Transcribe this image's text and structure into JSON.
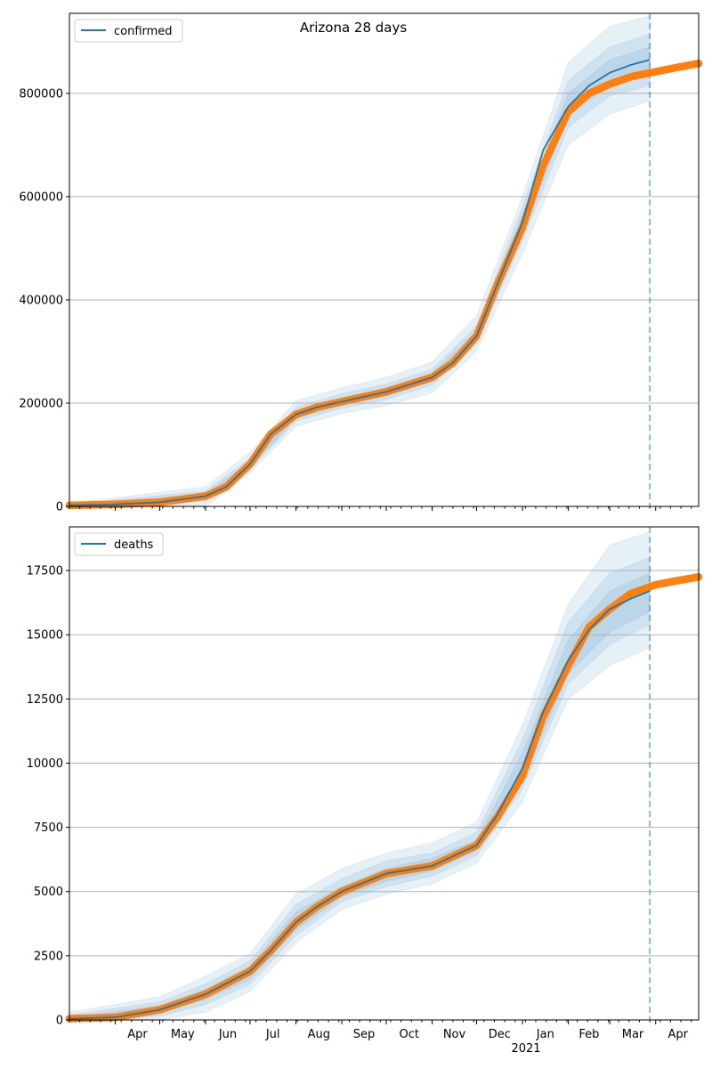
{
  "figure": {
    "title": "Arizona 28 days"
  },
  "colors": {
    "model": "#1f77b4",
    "observed": "#ff7f0e",
    "grid": "#b0b0b0",
    "band": "#1f77b4"
  },
  "chart_data": [
    {
      "type": "line",
      "name": "confirmed-panel",
      "legend": [
        "confirmed"
      ],
      "legend_position": "top-left",
      "grid": "horizontal",
      "xlim": [
        "2020-03-01",
        "2021-04-30"
      ],
      "ylim": [
        0,
        955000
      ],
      "yticks": [
        0,
        200000,
        400000,
        600000,
        800000
      ],
      "ytick_labels": [
        "0",
        "200000",
        "400000",
        "600000",
        "800000"
      ],
      "forecast_start": "2021-03-28",
      "series": [
        {
          "name": "confirmed",
          "role": "model",
          "x": [
            "2020-03-01",
            "2020-04-01",
            "2020-05-01",
            "2020-06-01",
            "2020-06-15",
            "2020-07-01",
            "2020-07-15",
            "2020-08-01",
            "2020-08-15",
            "2020-09-01",
            "2020-10-01",
            "2020-11-01",
            "2020-11-15",
            "2020-12-01",
            "2020-12-15",
            "2021-01-01",
            "2021-01-15",
            "2021-02-01",
            "2021-02-15",
            "2021-03-01",
            "2021-03-15",
            "2021-03-28"
          ],
          "y": [
            2000,
            4000,
            8000,
            20000,
            38000,
            82000,
            140000,
            178000,
            192000,
            203000,
            222000,
            250000,
            278000,
            330000,
            430000,
            550000,
            690000,
            775000,
            815000,
            840000,
            855000,
            865000
          ]
        },
        {
          "name": "observed",
          "role": "observed",
          "x": [
            "2020-03-01",
            "2020-04-01",
            "2020-05-01",
            "2020-06-01",
            "2020-06-15",
            "2020-07-01",
            "2020-07-15",
            "2020-08-01",
            "2020-08-15",
            "2020-09-01",
            "2020-10-01",
            "2020-11-01",
            "2020-11-15",
            "2020-12-01",
            "2020-12-15",
            "2021-01-01",
            "2021-01-15",
            "2021-02-01",
            "2021-02-15",
            "2021-03-01",
            "2021-03-15",
            "2021-04-01",
            "2021-04-15",
            "2021-04-30"
          ],
          "y": [
            2000,
            4000,
            8000,
            20000,
            38000,
            82000,
            140000,
            178000,
            192000,
            203000,
            222000,
            250000,
            278000,
            330000,
            430000,
            540000,
            660000,
            765000,
            800000,
            818000,
            832000,
            842000,
            850000,
            858000
          ]
        }
      ],
      "bands": [
        {
          "x": [
            "2020-03-01",
            "2020-06-01",
            "2020-07-01",
            "2020-08-01",
            "2020-09-01",
            "2020-10-01",
            "2020-11-01",
            "2020-12-01",
            "2021-01-01",
            "2021-02-01",
            "2021-03-01",
            "2021-03-28"
          ],
          "lower": [
            0,
            0,
            65000,
            155000,
            180000,
            195000,
            220000,
            300000,
            490000,
            700000,
            760000,
            785000
          ],
          "upper": [
            6000,
            38000,
            105000,
            205000,
            230000,
            250000,
            280000,
            370000,
            600000,
            860000,
            930000,
            950000
          ]
        },
        {
          "x": [
            "2020-03-01",
            "2020-06-01",
            "2020-07-01",
            "2020-08-01",
            "2020-09-01",
            "2020-10-01",
            "2020-11-01",
            "2020-12-01",
            "2021-01-01",
            "2021-02-01",
            "2021-03-01",
            "2021-03-28"
          ],
          "lower": [
            1000,
            10000,
            72000,
            165000,
            190000,
            207000,
            235000,
            315000,
            515000,
            735000,
            795000,
            815000
          ],
          "upper": [
            4000,
            30000,
            93000,
            192000,
            218000,
            237000,
            266000,
            350000,
            580000,
            825000,
            890000,
            915000
          ]
        },
        {
          "x": [
            "2020-03-01",
            "2020-06-01",
            "2020-07-01",
            "2020-08-01",
            "2020-09-01",
            "2020-10-01",
            "2020-11-01",
            "2020-12-01",
            "2021-01-01",
            "2021-02-01",
            "2021-03-01",
            "2021-03-28"
          ],
          "lower": [
            1500,
            15000,
            77000,
            171000,
            196000,
            214000,
            242000,
            322000,
            532000,
            755000,
            818000,
            840000
          ],
          "upper": [
            3000,
            25000,
            87000,
            185000,
            210000,
            230000,
            258000,
            340000,
            565000,
            800000,
            865000,
            890000
          ]
        }
      ]
    },
    {
      "type": "line",
      "name": "deaths-panel",
      "legend": [
        "deaths"
      ],
      "legend_position": "top-left",
      "grid": "horizontal",
      "xlim": [
        "2020-03-01",
        "2021-04-30"
      ],
      "ylim": [
        0,
        19200
      ],
      "yticks": [
        0,
        2500,
        5000,
        7500,
        10000,
        12500,
        15000,
        17500
      ],
      "ytick_labels": [
        "0",
        "2500",
        "5000",
        "7500",
        "10000",
        "12500",
        "15000",
        "17500"
      ],
      "xtick_labels": [
        "Apr",
        "May",
        "Jun",
        "Jul",
        "Aug",
        "Sep",
        "Oct",
        "Nov",
        "Dec",
        "Jan",
        "Feb",
        "Mar",
        "Apr"
      ],
      "xtick_dates": [
        "2020-04-01",
        "2020-05-01",
        "2020-06-01",
        "2020-07-01",
        "2020-08-01",
        "2020-09-01",
        "2020-10-01",
        "2020-11-01",
        "2020-12-01",
        "2021-01-01",
        "2021-02-01",
        "2021-03-01",
        "2021-04-01"
      ],
      "year_label": "2021",
      "forecast_start": "2021-03-28",
      "series": [
        {
          "name": "deaths",
          "role": "model",
          "x": [
            "2020-03-01",
            "2020-04-01",
            "2020-05-01",
            "2020-06-01",
            "2020-07-01",
            "2020-07-15",
            "2020-08-01",
            "2020-08-15",
            "2020-09-01",
            "2020-10-01",
            "2020-11-01",
            "2020-12-01",
            "2020-12-15",
            "2021-01-01",
            "2021-01-15",
            "2021-02-01",
            "2021-02-15",
            "2021-03-01",
            "2021-03-15",
            "2021-03-28"
          ],
          "y": [
            50,
            100,
            400,
            1000,
            1900,
            2700,
            3800,
            4400,
            5000,
            5700,
            6000,
            6800,
            8000,
            9800,
            12000,
            14000,
            15200,
            16000,
            16400,
            16700
          ]
        },
        {
          "name": "observed",
          "role": "observed",
          "x": [
            "2020-03-01",
            "2020-04-01",
            "2020-05-01",
            "2020-06-01",
            "2020-07-01",
            "2020-07-15",
            "2020-08-01",
            "2020-08-15",
            "2020-09-01",
            "2020-10-01",
            "2020-11-01",
            "2020-12-01",
            "2020-12-15",
            "2021-01-01",
            "2021-01-15",
            "2021-02-01",
            "2021-02-15",
            "2021-03-01",
            "2021-03-15",
            "2021-04-01",
            "2021-04-15",
            "2021-04-30"
          ],
          "y": [
            50,
            100,
            400,
            1000,
            1900,
            2700,
            3800,
            4400,
            5000,
            5700,
            6000,
            6800,
            7900,
            9500,
            11800,
            13800,
            15300,
            16000,
            16600,
            16950,
            17100,
            17250
          ]
        }
      ],
      "bands": [
        {
          "x": [
            "2020-03-01",
            "2020-05-01",
            "2020-06-01",
            "2020-07-01",
            "2020-08-01",
            "2020-09-01",
            "2020-10-01",
            "2020-11-01",
            "2020-12-01",
            "2021-01-01",
            "2021-02-01",
            "2021-03-01",
            "2021-03-28"
          ],
          "lower": [
            0,
            0,
            300,
            1100,
            3000,
            4300,
            4900,
            5300,
            6100,
            8500,
            12500,
            13800,
            14500
          ],
          "upper": [
            300,
            900,
            1700,
            2600,
            4900,
            5900,
            6500,
            6900,
            7700,
            11500,
            16200,
            18500,
            19000
          ]
        },
        {
          "x": [
            "2020-03-01",
            "2020-05-01",
            "2020-06-01",
            "2020-07-01",
            "2020-08-01",
            "2020-09-01",
            "2020-10-01",
            "2020-11-01",
            "2020-12-01",
            "2021-01-01",
            "2021-02-01",
            "2021-03-01",
            "2021-03-28"
          ],
          "lower": [
            0,
            150,
            600,
            1400,
            3300,
            4600,
            5200,
            5600,
            6400,
            9000,
            13100,
            14600,
            15400
          ],
          "upper": [
            200,
            700,
            1400,
            2300,
            4500,
            5500,
            6200,
            6500,
            7300,
            10900,
            15500,
            17400,
            18000
          ]
        },
        {
          "x": [
            "2020-03-01",
            "2020-05-01",
            "2020-06-01",
            "2020-07-01",
            "2020-08-01",
            "2020-09-01",
            "2020-10-01",
            "2020-11-01",
            "2020-12-01",
            "2021-01-01",
            "2021-02-01",
            "2021-03-01",
            "2021-03-28"
          ],
          "lower": [
            20,
            250,
            800,
            1600,
            3500,
            4800,
            5400,
            5800,
            6600,
            9300,
            13500,
            15100,
            15900
          ],
          "upper": [
            100,
            550,
            1200,
            2100,
            4200,
            5200,
            5900,
            6300,
            7000,
            10400,
            14800,
            16700,
            17400
          ]
        }
      ]
    }
  ]
}
